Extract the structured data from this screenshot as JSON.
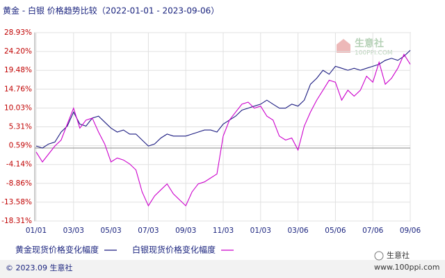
{
  "chart_data": {
    "type": "line",
    "title": "黄金 - 白银 价格趋势比较（2022-01-01 - 2023-09-06）",
    "categories": [
      "01/01",
      null,
      null,
      null,
      null,
      null,
      "03/03",
      null,
      null,
      null,
      null,
      null,
      "05/03",
      null,
      null,
      null,
      null,
      null,
      "07/03",
      null,
      null,
      null,
      null,
      null,
      "09/03",
      null,
      null,
      null,
      null,
      null,
      "11/03",
      null,
      null,
      null,
      null,
      null,
      "01/03",
      null,
      null,
      null,
      null,
      null,
      "03/06",
      null,
      null,
      null,
      null,
      null,
      "05/06",
      null,
      null,
      null,
      null,
      null,
      "07/06",
      null,
      null,
      null,
      null,
      null,
      "09/06"
    ],
    "series": [
      {
        "name": "黄金现货价格变化幅度",
        "color": "#1a1a80",
        "values": [
          0.5,
          0.0,
          1.0,
          1.5,
          4.0,
          5.5,
          9.0,
          6.0,
          5.5,
          7.5,
          8.0,
          6.5,
          5.0,
          4.0,
          4.5,
          3.5,
          3.5,
          2.0,
          0.5,
          1.0,
          2.5,
          3.5,
          3.0,
          3.0,
          3.0,
          3.5,
          4.0,
          4.5,
          4.5,
          4.0,
          6.0,
          7.0,
          8.0,
          9.5,
          10.0,
          10.5,
          11.0,
          12.0,
          11.0,
          10.0,
          10.0,
          11.0,
          10.5,
          12.0,
          16.0,
          17.5,
          19.5,
          18.5,
          20.5,
          20.0,
          19.5,
          20.0,
          19.5,
          20.0,
          20.5,
          21.0,
          22.0,
          22.5,
          22.0,
          23.0,
          24.5
        ]
      },
      {
        "name": "白银现货价格变化幅度",
        "color": "#cc00cc",
        "values": [
          -1.0,
          -3.5,
          -1.5,
          0.5,
          2.0,
          6.0,
          10.0,
          5.0,
          7.0,
          7.5,
          4.0,
          1.0,
          -3.5,
          -2.5,
          -3.0,
          -4.0,
          -5.5,
          -11.0,
          -14.5,
          -12.0,
          -10.5,
          -9.0,
          -11.5,
          -13.0,
          -14.5,
          -11.0,
          -9.0,
          -8.5,
          -7.5,
          -6.5,
          3.0,
          7.0,
          9.0,
          11.0,
          11.5,
          10.0,
          10.5,
          8.0,
          7.0,
          3.0,
          2.0,
          2.5,
          -0.5,
          5.5,
          9.0,
          12.0,
          14.5,
          17.0,
          16.5,
          12.0,
          14.5,
          13.0,
          14.5,
          18.0,
          16.5,
          21.5,
          16.0,
          17.5,
          20.0,
          23.5,
          21.0
        ]
      }
    ],
    "ylim": [
      -18.31,
      28.93
    ],
    "yticks": [
      {
        "value": 28.93,
        "label": "28.93%"
      },
      {
        "value": 24.2,
        "label": "24.20%"
      },
      {
        "value": 19.48,
        "label": "19.48%"
      },
      {
        "value": 14.76,
        "label": "14.76%"
      },
      {
        "value": 10.03,
        "label": "10.03%"
      },
      {
        "value": 5.31,
        "label": "5.31%"
      },
      {
        "value": 0.59,
        "label": "0.59%"
      },
      {
        "value": -4.14,
        "label": "-4.14%"
      },
      {
        "value": -8.86,
        "label": "-8.86%"
      },
      {
        "value": -13.58,
        "label": "-13.58%"
      },
      {
        "value": -18.31,
        "label": "-18.31%"
      }
    ],
    "grid": true,
    "watermark": "生意社",
    "watermark_url": "100PPI.COM"
  },
  "footer": "© 2023.09 生意社",
  "brand": "生意社",
  "brand_url": "www.100ppi.com"
}
